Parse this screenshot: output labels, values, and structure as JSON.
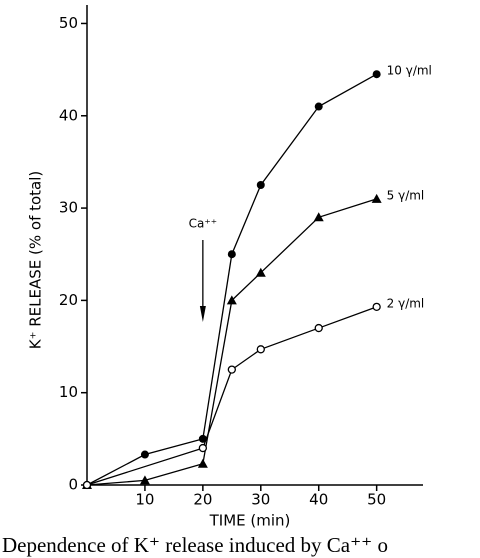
{
  "chart_data": {
    "type": "line",
    "caption": "Dependence of K⁺ release induced by Ca⁺⁺ o",
    "xlabel": "TIME (min)",
    "ylabel": "K⁺ RELEASE (% of total)",
    "annotation": "Ca⁺⁺",
    "xlim": [
      0,
      58
    ],
    "ylim": [
      0,
      52
    ],
    "xticks": [
      10,
      20,
      30,
      40,
      50
    ],
    "yticks": [
      0,
      10,
      20,
      30,
      40,
      50
    ],
    "grid": false,
    "series": [
      {
        "name": "10 γ/ml",
        "color": "#000000",
        "marker": "filled-circle",
        "x": [
          0,
          10,
          20,
          25,
          30,
          40,
          50
        ],
        "values": [
          0,
          3.3,
          5,
          25,
          32.5,
          41,
          44.5
        ]
      },
      {
        "name": "5 γ/ml",
        "color": "#000000",
        "marker": "triangle",
        "x": [
          0,
          10,
          20,
          25,
          30,
          40,
          50
        ],
        "values": [
          0,
          0.5,
          2.3,
          20,
          23,
          29,
          31
        ]
      },
      {
        "name": "2 γ/ml",
        "color": "#000000",
        "marker": "open-circle",
        "x": [
          0,
          20,
          25,
          30,
          40,
          50
        ],
        "values": [
          0,
          4,
          12.5,
          14.7,
          17,
          19.3
        ]
      }
    ]
  }
}
